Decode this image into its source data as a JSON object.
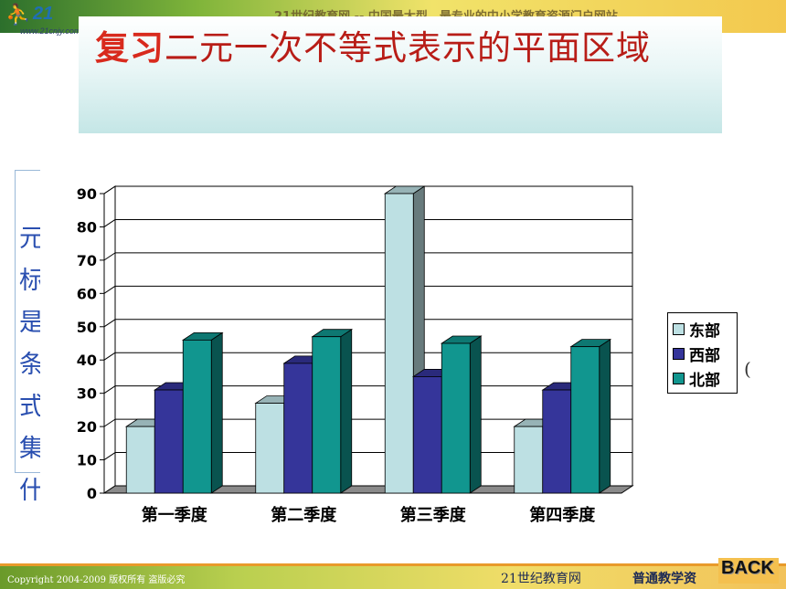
{
  "header": {
    "logo_number": "21",
    "logo_url": "www.21cnjy.com",
    "banner_text": "21世纪教育网 -- 中国最大型、最专业的中小学教育资源门户网站"
  },
  "slide": {
    "title_accent": "复习",
    "title_rest": "二元一次不等式表示的平面区域",
    "side_text": "元\n标\n是\n条\n式\n集\n什",
    "stray_char": "("
  },
  "footer": {
    "copyright": "Copyright 2004-2009 版权所有 盗版必究",
    "site_name": "21世纪教育网",
    "sub_text": "普通教学资",
    "back_label": "BACK"
  },
  "colors": {
    "east": "#bde0e3",
    "west": "#35359a",
    "north": "#11968f",
    "title_red": "#d82a1d"
  },
  "chart_data": {
    "type": "bar",
    "categories": [
      "第一季度",
      "第二季度",
      "第三季度",
      "第四季度"
    ],
    "series": [
      {
        "name": "东部",
        "values": [
          20,
          27,
          90,
          20
        ]
      },
      {
        "name": "西部",
        "values": [
          31,
          39,
          35,
          31
        ]
      },
      {
        "name": "北部",
        "values": [
          46,
          47,
          45,
          44
        ]
      }
    ],
    "ylim": [
      0,
      90
    ],
    "yticks": [
      0,
      10,
      20,
      30,
      40,
      50,
      60,
      70,
      80,
      90
    ],
    "grid": true,
    "three_d": true,
    "legend_position": "right",
    "title": "",
    "xlabel": "",
    "ylabel": ""
  }
}
